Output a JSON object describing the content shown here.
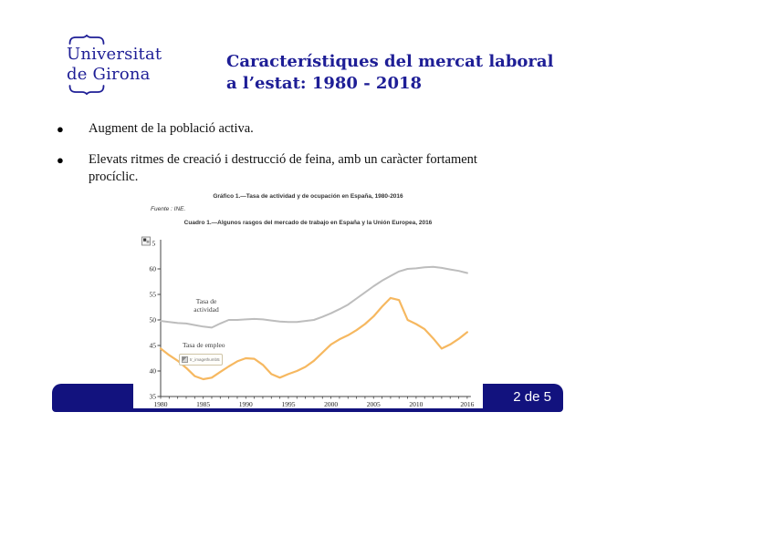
{
  "slide": {
    "logo": {
      "line1": "Universitat",
      "line2": "de Girona"
    },
    "title": {
      "line1": "Característiques del mercat laboral",
      "line2": "a l’estat: 1980 - 2018"
    },
    "bullets": [
      "Augment de la població activa.",
      "Elevats ritmes de creació i destrucció de feina, amb un caràcter fortament procíclic."
    ],
    "page_number": "2 de 5",
    "colors": {
      "navy": "#1e1e96",
      "footer_navy": "#12127e",
      "activity_line": "#bdbdbd",
      "employment_line": "#f6b860",
      "axis": "#444444",
      "chart_text": "#222222"
    }
  },
  "figure": {
    "title": "Gráfico 1.—Tasa de actividad y de ocupación en España, 1980-2016",
    "source": "Fuente : INE.",
    "subtitle": "Cuadro 1.—Algunos rasgos del mercado de trabajo en España y la Unión Europea, 2016",
    "labels": {
      "activity_line1": "Tasa de",
      "activity_line2": "actividad",
      "employment": "Tasa de empleo"
    },
    "broken_thumb_text": "tr_imagethumb52",
    "y_axis_top_label": "5"
  },
  "chart_data": {
    "type": "line",
    "title": "Gráfico 1.—Tasa de actividad y de ocupación en España, 1980-2016",
    "xlabel": "",
    "ylabel": "",
    "xlim": [
      1980,
      2016
    ],
    "ylim": [
      35,
      65
    ],
    "grid": false,
    "legend": "inline-labels",
    "xticks": [
      1980,
      1985,
      1990,
      1995,
      2000,
      2005,
      2010,
      2016
    ],
    "yticks": [
      35,
      40,
      45,
      50,
      55,
      60,
      65
    ],
    "x": [
      1980,
      1981,
      1982,
      1983,
      1984,
      1985,
      1986,
      1987,
      1988,
      1989,
      1990,
      1991,
      1992,
      1993,
      1994,
      1995,
      1996,
      1997,
      1998,
      1999,
      2000,
      2001,
      2002,
      2003,
      2004,
      2005,
      2006,
      2007,
      2008,
      2009,
      2010,
      2011,
      2012,
      2013,
      2014,
      2015,
      2016
    ],
    "series": [
      {
        "name": "Tasa de actividad",
        "color": "#bdbdbd",
        "values": [
          49.8,
          49.6,
          49.4,
          49.3,
          49.0,
          48.7,
          48.5,
          49.3,
          50.0,
          50.0,
          50.1,
          50.2,
          50.1,
          49.9,
          49.7,
          49.6,
          49.6,
          49.8,
          50.0,
          50.6,
          51.3,
          52.1,
          53.0,
          54.2,
          55.4,
          56.6,
          57.7,
          58.6,
          59.5,
          60.0,
          60.1,
          60.3,
          60.4,
          60.2,
          59.9,
          59.6,
          59.2
        ]
      },
      {
        "name": "Tasa de empleo",
        "color": "#f6b860",
        "values": [
          44.4,
          43.1,
          42.0,
          40.6,
          39.0,
          38.4,
          38.7,
          39.8,
          40.9,
          41.9,
          42.5,
          42.4,
          41.2,
          39.4,
          38.7,
          39.4,
          40.0,
          40.8,
          42.0,
          43.6,
          45.2,
          46.2,
          47.0,
          48.0,
          49.2,
          50.7,
          52.6,
          54.3,
          53.9,
          50.0,
          49.2,
          48.2,
          46.4,
          44.4,
          45.2,
          46.3,
          47.6
        ]
      }
    ]
  }
}
